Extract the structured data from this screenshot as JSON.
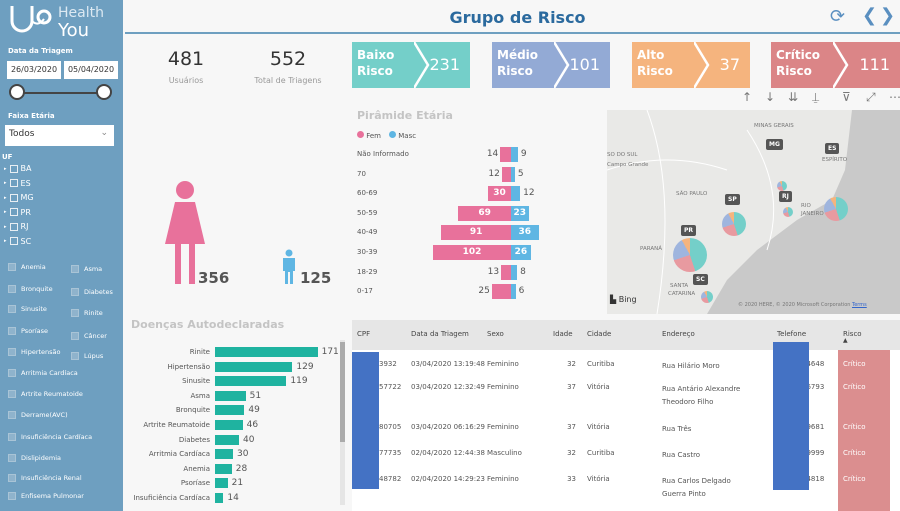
{
  "brand": {
    "line1": "Health",
    "line2": "You"
  },
  "sidebar": {
    "date_label": "Data da Triagem",
    "date_start": "26/03/2020",
    "date_end": "05/04/2020",
    "age_label": "Faixa Etária",
    "age_value": "Todos",
    "uf_label": "UF",
    "ufs": [
      "BA",
      "ES",
      "MG",
      "PR",
      "RJ",
      "SC"
    ],
    "diseases_left": [
      "Anemia",
      "Bronquite",
      "Sinusite",
      "Psoríase",
      "Hipertensão",
      "Arritmia Cardíaca",
      "Artrite Reumatoide",
      "Derrame(AVC)",
      "Insuficiência Cardíaca",
      "Dislipidemia",
      "Insuficiência Renal",
      "Enfisema Pulmonar"
    ],
    "diseases_right": [
      "Asma",
      "Diabetes",
      "Rinite",
      "Câncer",
      "Lúpus"
    ]
  },
  "header": {
    "title": "Grupo de Risco",
    "title_color": "#2b6a9e"
  },
  "kpis": [
    {
      "value": "481",
      "label": "Usuários"
    },
    {
      "value": "552",
      "label": "Total de Triagens"
    }
  ],
  "risk_cards": [
    {
      "label1": "Baixo",
      "label2": "Risco",
      "value": "231",
      "color": "#74cfc9"
    },
    {
      "label1": "Médio",
      "label2": "Risco",
      "value": "101",
      "color": "#93aad5"
    },
    {
      "label1": "Alto",
      "label2": "Risco",
      "value": "37",
      "color": "#f5b47e"
    },
    {
      "label1": "Crítico",
      "label2": "Risco",
      "value": "111",
      "color": "#db8587"
    }
  ],
  "gender": {
    "female": "356",
    "male": "125",
    "female_color": "#e8719b",
    "male_color": "#5fb6e3"
  },
  "chart_data": [
    {
      "type": "bar",
      "title": "Pirâmide Etária",
      "legend": [
        "Fem",
        "Masc"
      ],
      "categories": [
        "Não Informado",
        "70",
        "60-69",
        "50-59",
        "40-49",
        "30-39",
        "18-29",
        "0-17"
      ],
      "series": [
        {
          "name": "Fem",
          "values": [
            14,
            12,
            30,
            69,
            91,
            102,
            13,
            25
          ],
          "color": "#e8719b"
        },
        {
          "name": "Masc",
          "values": [
            9,
            5,
            12,
            23,
            36,
            26,
            8,
            6
          ],
          "color": "#5fb6e3"
        }
      ]
    },
    {
      "type": "bar",
      "title": "Doenças Autodeclaradas",
      "categories": [
        "Rinite",
        "Hipertensão",
        "Sinusite",
        "Asma",
        "Bronquite",
        "Artrite Reumatoide",
        "Diabetes",
        "Arritmia Cardíaca",
        "Anemia",
        "Psoríase",
        "Insuficiência Cardíaca"
      ],
      "values": [
        171,
        129,
        119,
        51,
        49,
        46,
        40,
        30,
        28,
        21,
        14
      ],
      "color": "#1fb3a0"
    }
  ],
  "map": {
    "labels": [
      "MINAS GERAIS",
      "SO DO SUL",
      "Campo Grande",
      "SÃO PAULO",
      "PARANÁ",
      "RIO",
      "JANEIRO",
      "SANTA",
      "CATARINA",
      "ESPÍRITO"
    ],
    "markers": [
      "MG",
      "ES",
      "SP",
      "RJ",
      "PR",
      "SC"
    ],
    "bing": "Bing",
    "copyright": "© 2020 HERE, © 2020 Microsoft Corporation",
    "terms": "Terms"
  },
  "table": {
    "headers": [
      "CPF",
      "Data da Triagem",
      "Sexo",
      "Idade",
      "Cidade",
      "Endereço",
      "Telefone",
      "Risco"
    ],
    "rows": [
      [
        "3932",
        "03/04/2020 13:19:48",
        "Feminino",
        "32",
        "Curitiba",
        "Rua Hilário Moro",
        "34648",
        "Crítico"
      ],
      [
        "57722",
        "03/04/2020 12:32:49",
        "Feminino",
        "37",
        "Vitória",
        "Rua Antário Alexandre Theodoro Filho",
        "66793",
        "Crítico"
      ],
      [
        "80705",
        "03/04/2020 06:16:29",
        "Feminino",
        "37",
        "Vitória",
        "Rua Três",
        "09681",
        "Crítico"
      ],
      [
        "77735",
        "02/04/2020 12:44:38",
        "Masculino",
        "32",
        "Curitiba",
        "Rua Castro",
        "99999",
        "Crítico"
      ],
      [
        "48782",
        "02/04/2020 14:29:23",
        "Feminino",
        "33",
        "Vitória",
        "Rua Carlos Delgado Guerra Pinto",
        "54818",
        "Crítico"
      ]
    ]
  }
}
